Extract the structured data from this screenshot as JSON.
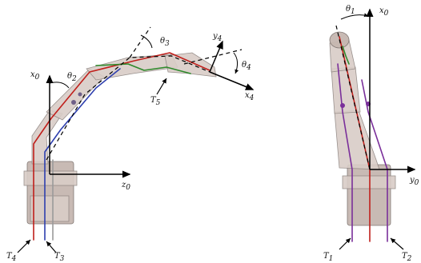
{
  "left_arm": {
    "labels": {
      "x0": "x",
      "x0_sub": "0",
      "z0": "z",
      "z0_sub": "0",
      "theta2": "θ",
      "theta2_sub": "2",
      "theta3": "θ",
      "theta3_sub": "3",
      "theta4": "θ",
      "theta4_sub": "4",
      "y4": "y",
      "y4_sub": "4",
      "x4": "x",
      "x4_sub": "4",
      "t5": "T",
      "t5_sub": "5",
      "t4": "T",
      "t4_sub": "4",
      "t3": "T",
      "t3_sub": "3"
    }
  },
  "right_arm": {
    "labels": {
      "theta1": "θ",
      "theta1_sub": "1",
      "x0": "x",
      "x0_sub": "0",
      "y0": "y",
      "y0_sub": "0",
      "t1": "T",
      "t1_sub": "1",
      "t2": "T",
      "t2_sub": "2"
    }
  },
  "colors": {
    "cable_red": "#c0201c",
    "cable_blue": "#2e3fae",
    "cable_green": "#2f8a2c",
    "cable_purple": "#7a2f9a",
    "link_body": "#d9cdc7"
  }
}
